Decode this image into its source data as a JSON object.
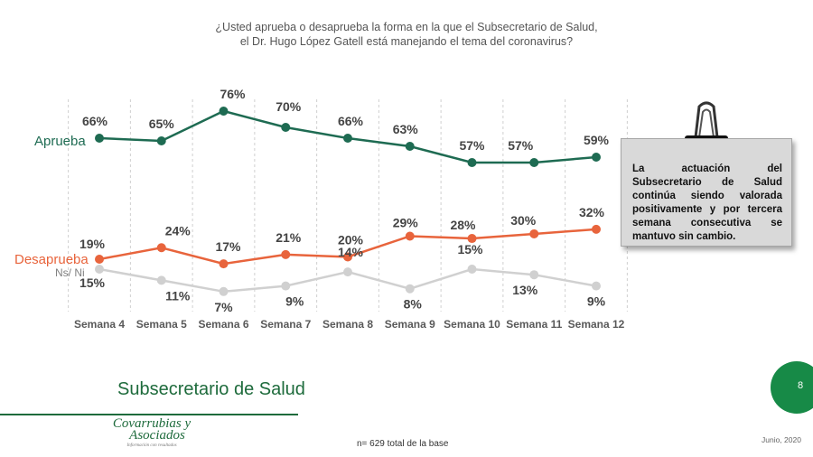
{
  "question": {
    "line1": "¿Usted aprueba o desaprueba la forma en la que el Subsecretario de Salud,",
    "line2": "el Dr. Hugo López Gatell está manejando el tema del coronavirus?"
  },
  "chart_data": {
    "type": "line",
    "categories": [
      "Semana 4",
      "Semana 5",
      "Semana 6",
      "Semana 7",
      "Semana 8",
      "Semana 9",
      "Semana 10",
      "Semana 11",
      "Semana 12"
    ],
    "series": [
      {
        "name": "Aprueba",
        "values": [
          66,
          65,
          76,
          70,
          66,
          63,
          57,
          57,
          59
        ],
        "color": "#1e6b52"
      },
      {
        "name": "Desaprueba",
        "values": [
          19,
          24,
          17,
          21,
          20,
          29,
          28,
          30,
          32
        ],
        "color": "#e8643c"
      },
      {
        "name": "Ns/ Ni",
        "values": [
          15,
          11,
          7,
          9,
          14,
          8,
          15,
          13,
          9
        ],
        "color": "#d0d0d0"
      }
    ],
    "value_suffix": "%",
    "grid": "vertical dashed"
  },
  "note": {
    "text": "La actuación del Subsecretario de Salud continúa siendo valorada positivamente y por tercera semana consecutiva se mantuvo sin cambio."
  },
  "section_title": "Subsecretario de Salud",
  "logo": {
    "line1": "Covarrubias y",
    "line2": "Asociados",
    "tagline": "Información con resultados"
  },
  "base_note": "n= 629 total de la base",
  "date": "Junio, 2020",
  "page_number": "8",
  "colors": {
    "brand_green": "#1e6b3c",
    "page_badge": "#178a47"
  }
}
